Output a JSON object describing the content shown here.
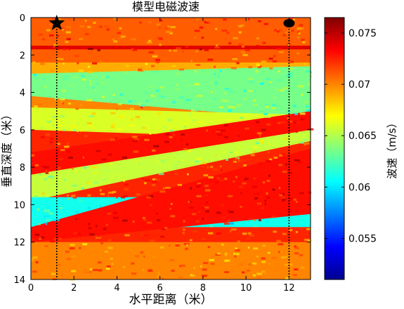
{
  "chart_data": {
    "type": "heatmap",
    "title": "模型电磁波速",
    "xlabel": "水平距离（米）",
    "ylabel": "垂直深度（米）",
    "xlim": [
      0,
      13
    ],
    "ylim": [
      14,
      0
    ],
    "xticks": [
      "0",
      "2",
      "4",
      "6",
      "8",
      "10",
      "12"
    ],
    "xtick_values": [
      0,
      2,
      4,
      6,
      8,
      10,
      12
    ],
    "yticks": [
      "0",
      "2",
      "4",
      "6",
      "8",
      "10",
      "12",
      "14"
    ],
    "ytick_values": [
      0,
      2,
      4,
      6,
      8,
      10,
      12,
      14
    ],
    "colorbar": {
      "label": "波速（m/s）",
      "range": [
        0.051,
        0.0765
      ],
      "ticks": [
        "0.055",
        "0.06",
        "0.065",
        "0.07",
        "0.075"
      ],
      "tick_values": [
        0.055,
        0.06,
        0.065,
        0.07,
        0.075
      ],
      "colormap": "jet"
    },
    "layers": [
      {
        "depth_top": [
          0,
          0
        ],
        "depth_bottom": [
          2.4,
          2.4
        ],
        "velocity": 0.071
      },
      {
        "depth_top": [
          1.5,
          1.5
        ],
        "depth_bottom": [
          1.7,
          1.7
        ],
        "velocity": 0.074
      },
      {
        "depth_top": [
          2.4,
          2.4
        ],
        "depth_bottom": [
          3.0,
          3.0
        ],
        "velocity": 0.069
      },
      {
        "depth_top": [
          3.0,
          2.6
        ],
        "depth_bottom": [
          4.2,
          5.5
        ],
        "velocity": 0.0635
      },
      {
        "depth_top": [
          4.2,
          5.5
        ],
        "depth_bottom": [
          4.8,
          6.5
        ],
        "velocity": 0.07
      },
      {
        "depth_top": [
          4.8,
          5.2
        ],
        "depth_bottom": [
          6.0,
          6.5
        ],
        "velocity": 0.066
      },
      {
        "depth_top": [
          7.2,
          5.0
        ],
        "depth_bottom": [
          8.4,
          6.3
        ],
        "velocity": 0.073
      },
      {
        "depth_top": [
          8.4,
          6.0
        ],
        "depth_bottom": [
          9.8,
          6.6
        ],
        "velocity": 0.0655
      },
      {
        "depth_top": [
          9.6,
          9.6
        ],
        "depth_bottom": [
          11.2,
          11.2
        ],
        "velocity": 0.061
      },
      {
        "depth_top": [
          11.2,
          7.0
        ],
        "depth_bottom": [
          12.0,
          10.5
        ],
        "velocity": 0.073
      },
      {
        "depth_top": [
          12.0,
          12.0
        ],
        "depth_bottom": [
          14,
          14
        ],
        "velocity": 0.07
      }
    ],
    "markers": [
      {
        "symbol": "star",
        "x": 1.2,
        "y": 0.3,
        "color": "#000000"
      },
      {
        "symbol": "ellipse",
        "x": 12.0,
        "y": 0.3,
        "color": "#000000"
      }
    ],
    "profile_lines": [
      {
        "x": 1.2,
        "y_range": [
          0.3,
          14
        ],
        "style": "dotted",
        "color": "#000000"
      },
      {
        "x": 12.0,
        "y_range": [
          0.3,
          14
        ],
        "style": "dotted",
        "color": "#000000"
      }
    ]
  }
}
